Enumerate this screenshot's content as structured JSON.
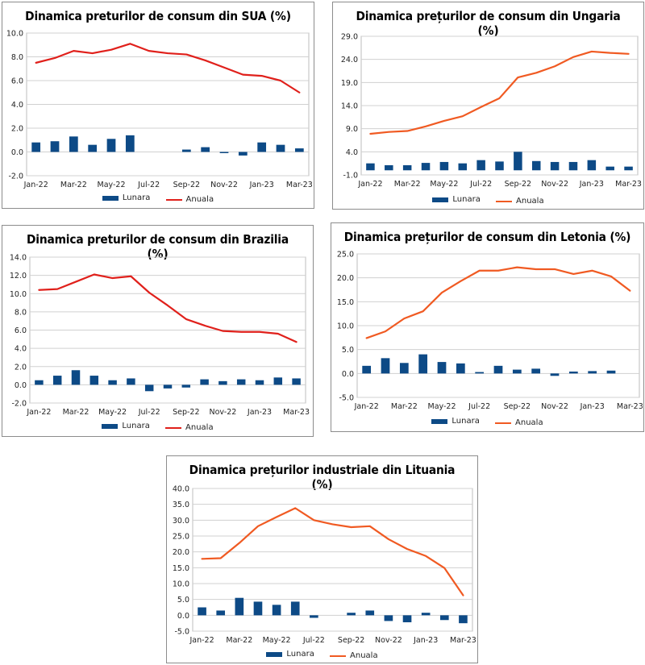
{
  "colors": {
    "bar": "#0d4a86",
    "line_red": "#e0201b",
    "line_orange": "#f05a22",
    "grid": "#d0d0d0"
  },
  "legend": {
    "bar_label": "Lunara",
    "line_label": "Anuala"
  },
  "chart_data": [
    {
      "type": "bar+line",
      "title": "Dinamica preturilor de consum din SUA (%)",
      "categories": [
        "Jan-22",
        "Feb-22",
        "Mar-22",
        "Apr-22",
        "May-22",
        "Jun-22",
        "Jul-22",
        "Aug-22",
        "Sep-22",
        "Oct-22",
        "Nov-22",
        "Dec-22",
        "Jan-23",
        "Feb-23",
        "Mar-23"
      ],
      "x_tick_labels": [
        "Jan-22",
        "Mar-22",
        "May-22",
        "Jul-22",
        "Sep-22",
        "Nov-22",
        "Jan-23",
        "Mar-23"
      ],
      "ylim": [
        -2,
        10
      ],
      "y_ticks": [
        "-2.0",
        "0.0",
        "2.0",
        "4.0",
        "6.0",
        "8.0",
        "10.0"
      ],
      "series": [
        {
          "name": "Lunara",
          "kind": "bar",
          "values": [
            0.8,
            0.9,
            1.3,
            0.6,
            1.1,
            1.4,
            0.0,
            0.0,
            0.2,
            0.4,
            -0.1,
            -0.3,
            0.8,
            0.6,
            0.3
          ]
        },
        {
          "name": "Anuala",
          "kind": "line",
          "values": [
            7.5,
            7.9,
            8.5,
            8.3,
            8.6,
            9.1,
            8.5,
            8.3,
            8.2,
            7.7,
            7.1,
            6.5,
            6.4,
            6.0,
            5.0
          ]
        }
      ],
      "line_color": "#e0201b"
    },
    {
      "type": "bar+line",
      "title": "Dinamica prețurilor de consum din Ungaria (%)",
      "categories": [
        "Jan-22",
        "Feb-22",
        "Mar-22",
        "Apr-22",
        "May-22",
        "Jun-22",
        "Jul-22",
        "Aug-22",
        "Sep-22",
        "Oct-22",
        "Nov-22",
        "Dec-22",
        "Jan-23",
        "Feb-23",
        "Mar-23"
      ],
      "x_tick_labels": [
        "Jan-22",
        "Mar-22",
        "May-22",
        "Jul-22",
        "Sep-22",
        "Nov-22",
        "Jan-23",
        "Mar-23"
      ],
      "ylim": [
        -1,
        29
      ],
      "y_ticks": [
        "-1.0",
        "4.0",
        "9.0",
        "14.0",
        "19.0",
        "24.0",
        "29.0"
      ],
      "series": [
        {
          "name": "Lunara",
          "kind": "bar",
          "values": [
            1.5,
            1.1,
            1.1,
            1.6,
            1.8,
            1.5,
            2.2,
            1.9,
            4.0,
            2.0,
            1.8,
            1.8,
            2.2,
            0.8,
            0.8
          ]
        },
        {
          "name": "Anuala",
          "kind": "line",
          "values": [
            7.9,
            8.3,
            8.5,
            9.5,
            10.7,
            11.7,
            13.7,
            15.6,
            20.1,
            21.1,
            22.5,
            24.5,
            25.7,
            25.4,
            25.2
          ]
        }
      ],
      "line_color": "#f05a22"
    },
    {
      "type": "bar+line",
      "title": "Dinamica preturilor de consum din Brazilia (%)",
      "categories": [
        "Jan-22",
        "Feb-22",
        "Mar-22",
        "Apr-22",
        "May-22",
        "Jun-22",
        "Jul-22",
        "Aug-22",
        "Sep-22",
        "Oct-22",
        "Nov-22",
        "Dec-22",
        "Jan-23",
        "Feb-23",
        "Mar-23"
      ],
      "x_tick_labels": [
        "Jan-22",
        "Mar-22",
        "May-22",
        "Jul-22",
        "Sep-22",
        "Nov-22",
        "Jan-23",
        "Mar-23"
      ],
      "ylim": [
        -2,
        14
      ],
      "y_ticks": [
        "-2.0",
        "0.0",
        "2.0",
        "4.0",
        "6.0",
        "8.0",
        "10.0",
        "12.0",
        "14.0"
      ],
      "series": [
        {
          "name": "Lunara",
          "kind": "bar",
          "values": [
            0.5,
            1.0,
            1.6,
            1.0,
            0.5,
            0.7,
            -0.7,
            -0.4,
            -0.3,
            0.6,
            0.4,
            0.6,
            0.5,
            0.8,
            0.7
          ]
        },
        {
          "name": "Anuala",
          "kind": "line",
          "values": [
            10.4,
            10.5,
            11.3,
            12.1,
            11.7,
            11.9,
            10.1,
            8.7,
            7.2,
            6.5,
            5.9,
            5.8,
            5.8,
            5.6,
            4.7
          ]
        }
      ],
      "line_color": "#e0201b"
    },
    {
      "type": "bar+line",
      "title": "Dinamica prețurilor de consum din Letonia (%)",
      "categories": [
        "Jan-22",
        "Feb-22",
        "Mar-22",
        "Apr-22",
        "May-22",
        "Jun-22",
        "Jul-22",
        "Aug-22",
        "Sep-22",
        "Oct-22",
        "Nov-22",
        "Dec-22",
        "Jan-23",
        "Feb-23",
        "Mar-23"
      ],
      "x_tick_labels": [
        "Jan-22",
        "Mar-22",
        "May-22",
        "Jul-22",
        "Sep-22",
        "Nov-22",
        "Jan-23",
        "Mar-23"
      ],
      "ylim": [
        -5,
        25
      ],
      "y_ticks": [
        "-5.0",
        "0.0",
        "5.0",
        "10.0",
        "15.0",
        "20.0",
        "25.0"
      ],
      "series": [
        {
          "name": "Lunara",
          "kind": "bar",
          "values": [
            1.6,
            3.2,
            2.2,
            4.0,
            2.4,
            2.1,
            0.3,
            1.6,
            0.8,
            1.0,
            -0.5,
            0.4,
            0.5,
            0.6,
            0.0
          ]
        },
        {
          "name": "Anuala",
          "kind": "line",
          "values": [
            7.4,
            8.8,
            11.5,
            13.0,
            16.9,
            19.3,
            21.5,
            21.5,
            22.2,
            21.8,
            21.8,
            20.8,
            21.5,
            20.3,
            17.3
          ]
        }
      ],
      "line_color": "#f05a22"
    },
    {
      "type": "bar+line",
      "title": "Dinamica prețurilor industriale din Lituania (%)",
      "categories": [
        "Jan-22",
        "Feb-22",
        "Mar-22",
        "Apr-22",
        "May-22",
        "Jun-22",
        "Jul-22",
        "Aug-22",
        "Sep-22",
        "Oct-22",
        "Nov-22",
        "Dec-22",
        "Jan-23",
        "Feb-23",
        "Mar-23"
      ],
      "x_tick_labels": [
        "Jan-22",
        "Mar-22",
        "May-22",
        "Jul-22",
        "Sep-22",
        "Nov-22",
        "Jan-23",
        "Mar-23"
      ],
      "ylim": [
        -5,
        40
      ],
      "y_ticks": [
        "-5.0",
        "0.0",
        "5.0",
        "10.0",
        "15.0",
        "20.0",
        "25.0",
        "30.0",
        "35.0",
        "40.0"
      ],
      "series": [
        {
          "name": "Lunara",
          "kind": "bar",
          "values": [
            2.5,
            1.5,
            5.5,
            4.3,
            3.3,
            4.3,
            -0.8,
            0.0,
            0.8,
            1.5,
            -1.8,
            -2.2,
            0.8,
            -1.5,
            -2.5
          ]
        },
        {
          "name": "Anuala",
          "kind": "line",
          "values": [
            17.8,
            18.0,
            22.8,
            28.1,
            31.0,
            33.8,
            30.0,
            28.7,
            27.8,
            28.1,
            24.0,
            20.9,
            18.7,
            14.9,
            6.3
          ]
        }
      ],
      "line_color": "#f05a22"
    }
  ]
}
